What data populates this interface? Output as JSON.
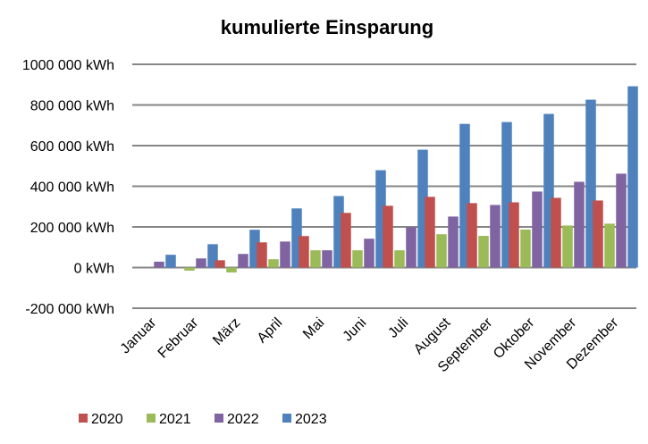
{
  "chart_data": {
    "type": "bar",
    "title": "kumulierte Einsparung",
    "xlabel": "",
    "ylabel": "",
    "unit": "kWh",
    "ylim": [
      -200000,
      1000000
    ],
    "yticks": [
      -200000,
      0,
      200000,
      400000,
      600000,
      800000,
      1000000
    ],
    "ytick_labels": [
      "-200 000 kWh",
      "0 kWh",
      "200 000 kWh",
      "400 000 kWh",
      "600 000 kWh",
      "800 000 kWh",
      "1000 000 kWh"
    ],
    "grid": true,
    "legend_position": "bottom-left",
    "categories": [
      "Januar",
      "Februar",
      "März",
      "April",
      "Mai",
      "Juni",
      "Juli",
      "August",
      "September",
      "Oktober",
      "November",
      "Dezember"
    ],
    "series": [
      {
        "name": "2020",
        "color": "#C0504D",
        "values": [
          0,
          0,
          36000,
          124000,
          155000,
          269000,
          304000,
          348000,
          317000,
          321000,
          343000,
          330000
        ]
      },
      {
        "name": "2021",
        "color": "#9BBB59",
        "values": [
          0,
          -15000,
          -24000,
          41000,
          85000,
          85000,
          85000,
          164000,
          156000,
          187000,
          207000,
          216000
        ]
      },
      {
        "name": "2022",
        "color": "#8064A2",
        "values": [
          29000,
          45000,
          67000,
          128000,
          85000,
          142000,
          199000,
          251000,
          308000,
          374000,
          422000,
          462000
        ]
      },
      {
        "name": "2023",
        "color": "#4F81BD",
        "values": [
          63000,
          115000,
          186000,
          291000,
          352000,
          479000,
          580000,
          707000,
          716000,
          756000,
          826000,
          892000
        ]
      }
    ]
  }
}
